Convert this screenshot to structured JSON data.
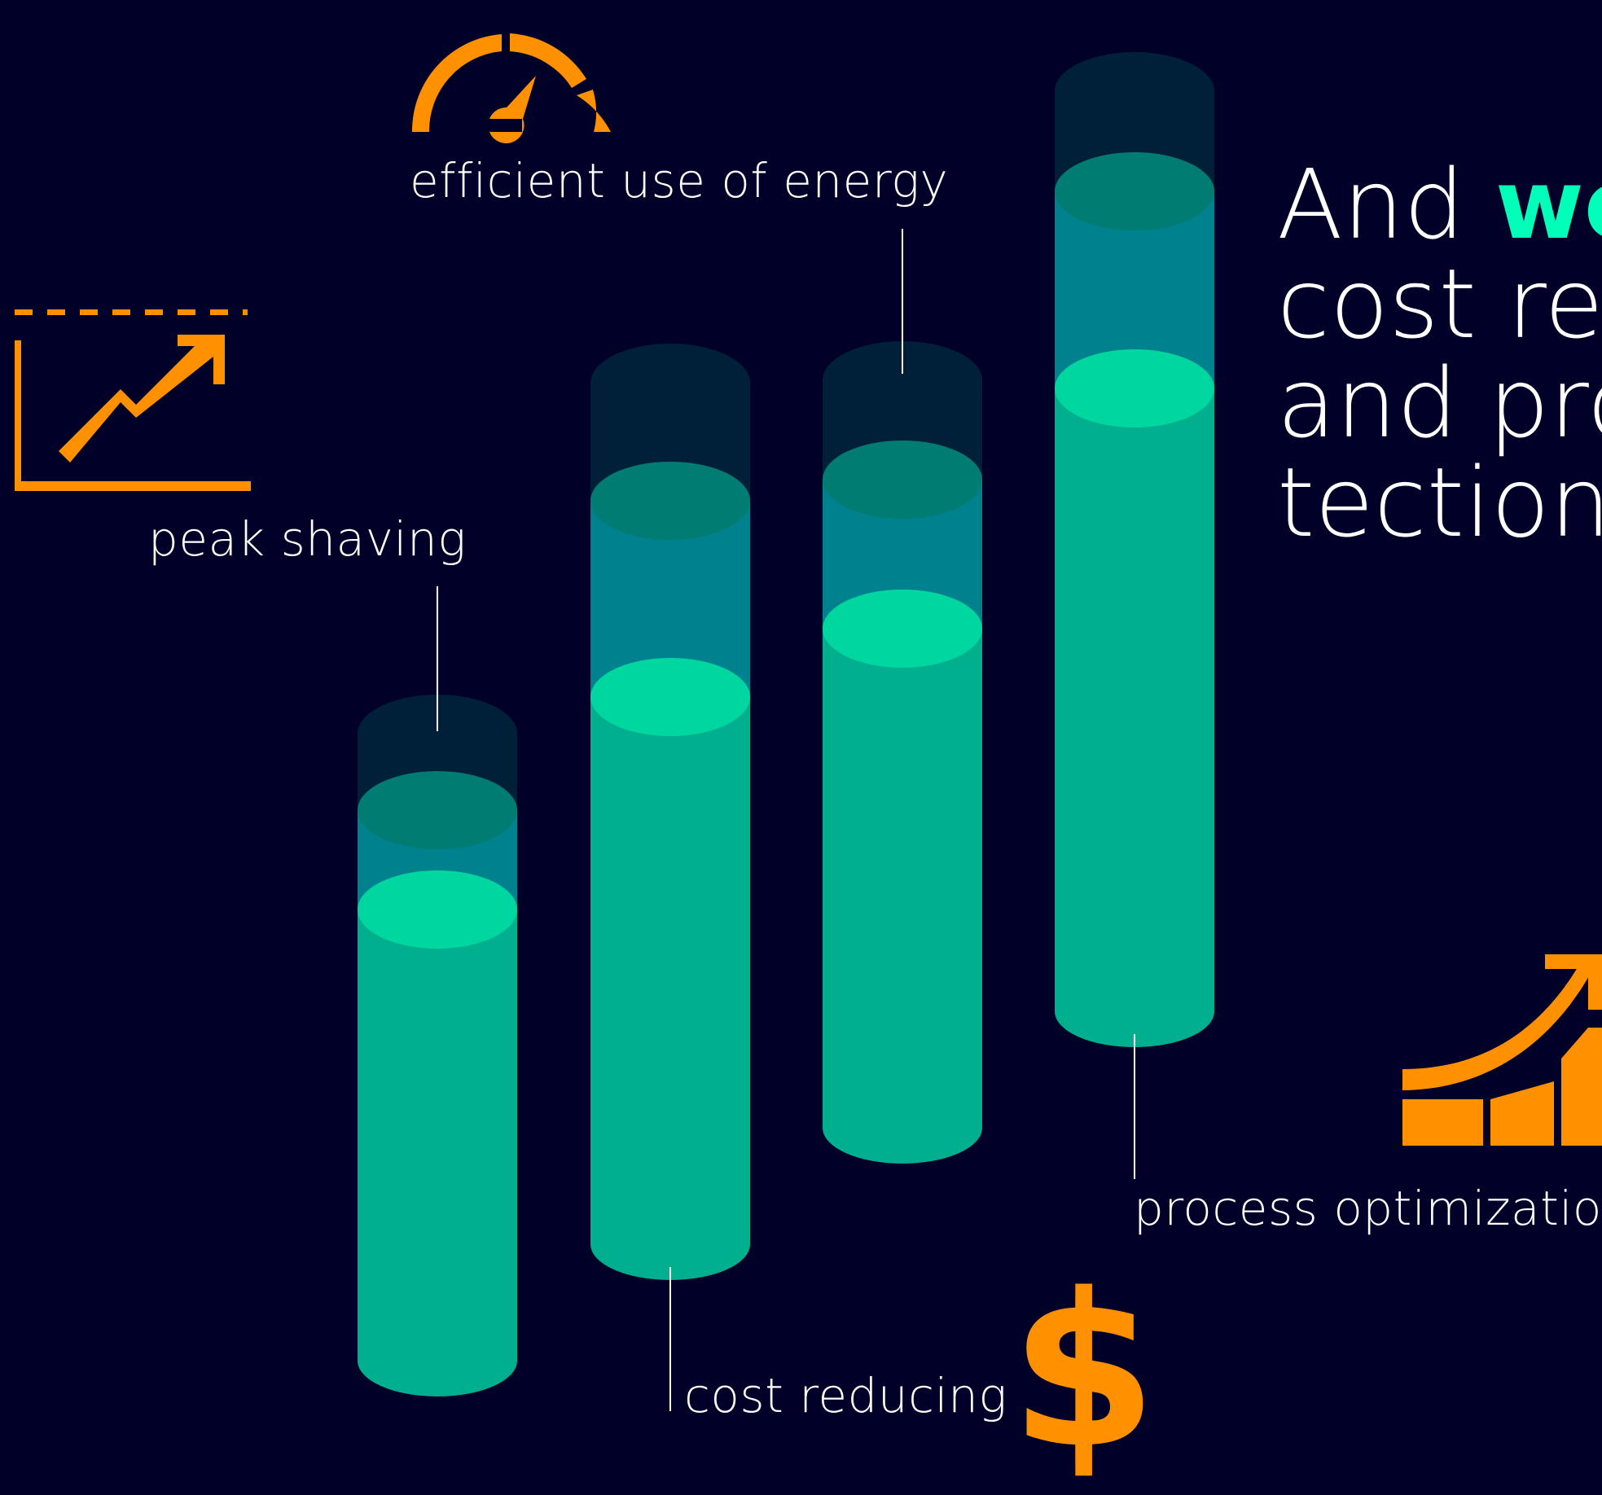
{
  "colors": {
    "background": "#000028",
    "accent": "#00FFB9",
    "orange": "#FF9100",
    "cylinder_body": "#00AF8E",
    "cylinder_mid": "#00818E",
    "cylinder_light": "#00D7A0",
    "cylinder_top": "#001F39",
    "cylinder_ring": "#007C73"
  },
  "labels": {
    "efficient_use": "efficient use of energy",
    "peak_shaving": "peak shaving",
    "cost_reducing": "cost reducing",
    "process_optimization": "process optimization"
  },
  "headline": {
    "prefix": "And ",
    "highlight": "we",
    "line2": "cost red",
    "line3": "and pro",
    "line4": "tection"
  },
  "icons": {
    "speedometer": "speedometer-icon",
    "growth_chart": "growth-chart-icon",
    "dollar": "$",
    "bar_growth": "bar-growth-icon"
  }
}
